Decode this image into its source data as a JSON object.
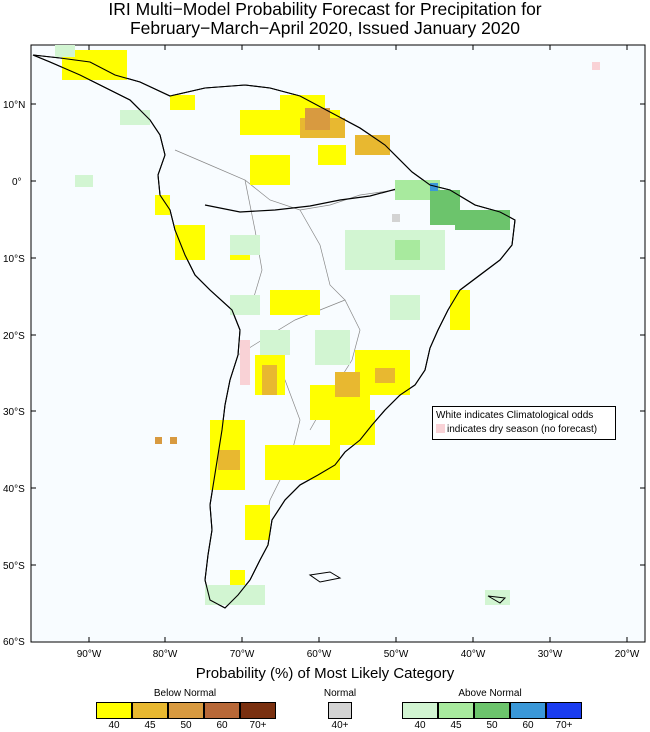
{
  "title": {
    "line1": "IRI Multi−Model Probability Forecast for Precipitation for",
    "line2": "February−March−April 2020, Issued January 2020"
  },
  "axes": {
    "lat_labels": [
      "10°N",
      "0°",
      "10°S",
      "20°S",
      "30°S",
      "40°S",
      "50°S",
      "60°S"
    ],
    "lon_labels": [
      "90°W",
      "80°W",
      "70°W",
      "60°W",
      "50°W",
      "40°W",
      "30°W",
      "20°W"
    ]
  },
  "note": {
    "line1": "White indicates Climatological odds",
    "line2": "indicates dry season (no forecast)"
  },
  "legend": {
    "title": "Probability (%) of Most Likely Category",
    "below_normal": {
      "label": "Below Normal",
      "ticks": [
        "40",
        "45",
        "50",
        "60",
        "70+"
      ],
      "colors": [
        "#ffff00",
        "#e8b830",
        "#d89a40",
        "#b86838",
        "#7a3010"
      ]
    },
    "normal": {
      "label": "Normal",
      "ticks": [
        "40+"
      ],
      "colors": [
        "#d3d3d3"
      ]
    },
    "above_normal": {
      "label": "Above Normal",
      "ticks": [
        "40",
        "45",
        "50",
        "60",
        "70+"
      ],
      "colors": [
        "#d2f5d2",
        "#a8ea9e",
        "#6cc46c",
        "#3a98d8",
        "#1a3cf0"
      ]
    },
    "dry_color": "#f9d2d6"
  }
}
